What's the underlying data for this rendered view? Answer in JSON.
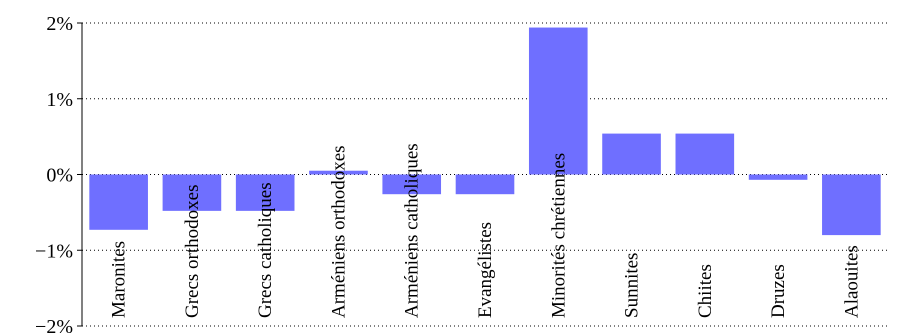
{
  "chart_data": {
    "type": "bar",
    "title": "",
    "xlabel": "",
    "ylabel": "",
    "categories": [
      "Maronites",
      "Grecs orthodoxes",
      "Grecs catholiques",
      "Arméniens orthodoxes",
      "Arméniens catholiques",
      "Evangélistes",
      "Minorités chrétiennes",
      "Sunnites",
      "Chiites",
      "Druzes",
      "Alaouites"
    ],
    "values": [
      -0.73,
      -0.48,
      -0.48,
      0.05,
      -0.26,
      -0.26,
      1.94,
      0.54,
      0.54,
      -0.07,
      -0.8
    ],
    "ylim": [
      -2,
      2
    ],
    "yticks": [
      -2,
      -1,
      0,
      1,
      2
    ],
    "ytick_labels": [
      "−2%",
      "−1%",
      "0%",
      "1%",
      "2%"
    ],
    "grid": true,
    "legend": "none",
    "bar_color": "#6f6fff"
  }
}
